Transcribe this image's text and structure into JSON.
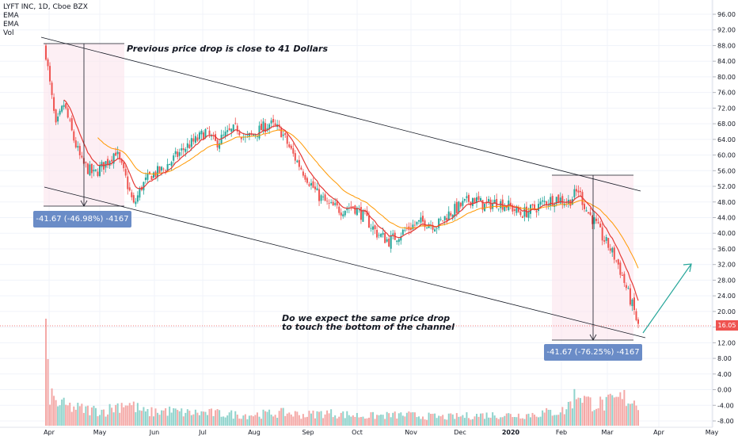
{
  "legend": {
    "symbol": "LYFT INC, 1D, Cboe BZX",
    "ema1": "EMA",
    "ema2": "EMA",
    "vol": "Vol"
  },
  "annotations": {
    "top_text": "Previous price drop is close to 41 Dollars",
    "bottom_text_1": "Do we expect the same price drop",
    "bottom_text_2": "to touch the bottom of the channel",
    "measure_1": "-41.67 (-46.98%) -4167",
    "measure_2": "-41.67 (-76.25%) -4167"
  },
  "last_price": "16.05",
  "chart_data": {
    "type": "candlestick",
    "y_axis_ticks": [
      "96.00",
      "92.00",
      "88.00",
      "84.00",
      "80.00",
      "76.00",
      "72.00",
      "68.00",
      "64.00",
      "60.00",
      "56.00",
      "52.00",
      "48.00",
      "44.00",
      "40.00",
      "36.00",
      "32.00",
      "28.00",
      "24.00",
      "20.00",
      "16.00",
      "12.00",
      "8.00",
      "4.00",
      "0.00",
      "-4.00",
      "-8.00"
    ],
    "x_axis_ticks": [
      "Apr",
      "May",
      "Jun",
      "Jul",
      "Aug",
      "Sep",
      "Oct",
      "Nov",
      "Dec",
      "2020",
      "Feb",
      "Mar",
      "Apr",
      "May"
    ],
    "ylim": [
      -8,
      96
    ],
    "colors": {
      "up": "#26a69a",
      "down": "#ef5350",
      "ema_fast": "#e53935",
      "ema_slow": "#ff9800",
      "channel": "#131722",
      "projection": "#26a69a",
      "highlight": "#fce4ec"
    },
    "close_anchors": [
      [
        0,
        86
      ],
      [
        2,
        78
      ],
      [
        5,
        67
      ],
      [
        9,
        73
      ],
      [
        14,
        64
      ],
      [
        18,
        58
      ],
      [
        24,
        55
      ],
      [
        30,
        58
      ],
      [
        35,
        61
      ],
      [
        40,
        54
      ],
      [
        44,
        47
      ],
      [
        48,
        52
      ],
      [
        53,
        55
      ],
      [
        58,
        56
      ],
      [
        64,
        59
      ],
      [
        70,
        62
      ],
      [
        76,
        64
      ],
      [
        80,
        66
      ],
      [
        85,
        63
      ],
      [
        90,
        65
      ],
      [
        96,
        67
      ],
      [
        100,
        64
      ],
      [
        106,
        66
      ],
      [
        112,
        68
      ],
      [
        118,
        66
      ],
      [
        124,
        60
      ],
      [
        130,
        55
      ],
      [
        136,
        50
      ],
      [
        142,
        47
      ],
      [
        148,
        46
      ],
      [
        154,
        47
      ],
      [
        160,
        44
      ],
      [
        166,
        40
      ],
      [
        172,
        38
      ],
      [
        178,
        40
      ],
      [
        184,
        42
      ],
      [
        190,
        43
      ],
      [
        196,
        42
      ],
      [
        202,
        45
      ],
      [
        208,
        47
      ],
      [
        214,
        49
      ],
      [
        220,
        47
      ],
      [
        226,
        48
      ],
      [
        232,
        47
      ],
      [
        238,
        45
      ],
      [
        244,
        46
      ],
      [
        250,
        48
      ],
      [
        256,
        49
      ],
      [
        262,
        48
      ],
      [
        267,
        51
      ],
      [
        271,
        46
      ],
      [
        275,
        43
      ],
      [
        279,
        39
      ],
      [
        283,
        36
      ],
      [
        287,
        32
      ],
      [
        291,
        26
      ],
      [
        295,
        20
      ],
      [
        297,
        16.05
      ]
    ],
    "total_days": 298,
    "volume_scale_max": 100,
    "volume_anchors": [
      [
        0,
        100
      ],
      [
        1,
        45
      ],
      [
        2,
        30
      ],
      [
        5,
        22
      ],
      [
        10,
        18
      ],
      [
        20,
        15
      ],
      [
        30,
        14
      ],
      [
        40,
        22
      ],
      [
        50,
        12
      ],
      [
        60,
        14
      ],
      [
        70,
        12
      ],
      [
        80,
        12
      ],
      [
        100,
        10
      ],
      [
        110,
        11
      ],
      [
        120,
        12
      ],
      [
        130,
        10
      ],
      [
        140,
        12
      ],
      [
        160,
        9
      ],
      [
        180,
        10
      ],
      [
        200,
        8
      ],
      [
        220,
        10
      ],
      [
        240,
        10
      ],
      [
        260,
        14
      ],
      [
        267,
        32
      ],
      [
        272,
        22
      ],
      [
        280,
        20
      ],
      [
        290,
        26
      ],
      [
        297,
        22
      ]
    ]
  }
}
